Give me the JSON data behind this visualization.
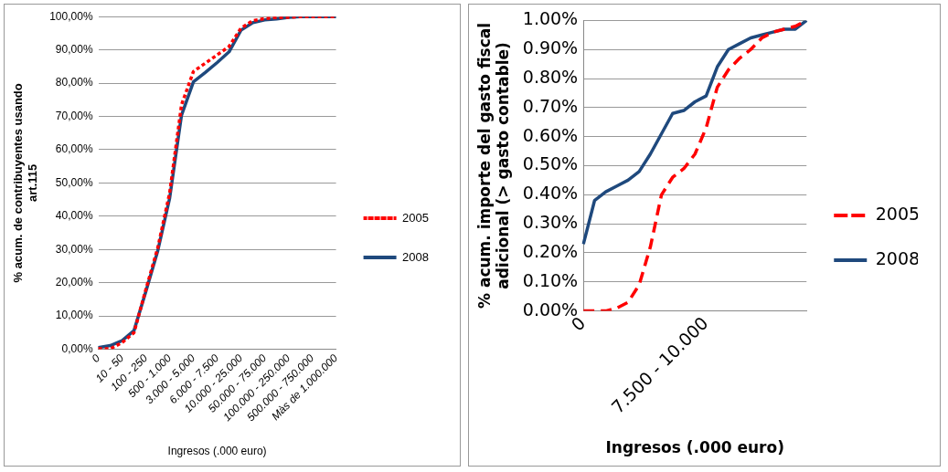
{
  "chart_data": [
    {
      "type": "line",
      "xlabel": "Ingresos (.000 euro)",
      "ylabel": "% acum. de contribuyentes usando art.115",
      "categories": [
        "0",
        null,
        "10 - 50",
        null,
        "100 - 250",
        null,
        "500 - 1.000",
        null,
        "3.000 - 5.000",
        null,
        "6.000 - 7.500",
        null,
        "10.000 - 25.000",
        null,
        "50.000 - 75.000",
        null,
        "100.000 - 250.000",
        null,
        "500.000 - 750.000",
        null,
        "Màs de 1.000.000"
      ],
      "series": [
        {
          "name": "2005",
          "color": "#ff0000",
          "line_style": "dotted",
          "values": [
            0.2,
            0.1,
            2.0,
            5.0,
            18.0,
            30.5,
            47.0,
            73.5,
            83.5,
            86.0,
            88.5,
            91.0,
            96.5,
            98.8,
            99.4,
            99.7,
            99.8,
            100,
            100,
            100,
            100
          ]
        },
        {
          "name": "2008",
          "color": "#1f497d",
          "values": [
            0.5,
            1.1,
            2.6,
            5.6,
            17.4,
            29.6,
            45.4,
            70.4,
            80.4,
            83.2,
            86.2,
            89.4,
            95.9,
            98.2,
            99.0,
            99.3,
            99.8,
            100,
            100,
            100,
            100
          ]
        }
      ],
      "ylim": [
        0,
        100
      ],
      "yticks": [
        {
          "value": 0,
          "label": "0,00%"
        },
        {
          "value": 10,
          "label": "10,00%"
        },
        {
          "value": 20,
          "label": "20,00%"
        },
        {
          "value": 30,
          "label": "30,00%"
        },
        {
          "value": 40,
          "label": "40,00%"
        },
        {
          "value": 50,
          "label": "50,00%"
        },
        {
          "value": 60,
          "label": "60,00%"
        },
        {
          "value": 70,
          "label": "70,00%"
        },
        {
          "value": 80,
          "label": "80,00%"
        },
        {
          "value": 90,
          "label": "90,00%"
        },
        {
          "value": 100,
          "label": "100,00%"
        }
      ],
      "grid": "y",
      "legend": "right",
      "marker": "none"
    },
    {
      "type": "line",
      "xlabel": "Ingresos (.000 euro)",
      "ylabel": "% acum. importe del gasto fiscal adicional (> gasto contable)",
      "categories": [
        "0",
        null,
        null,
        null,
        null,
        null,
        null,
        null,
        null,
        null,
        null,
        "7.500 - 10.000",
        null,
        null,
        null,
        null,
        null,
        null,
        null,
        null,
        null
      ],
      "series": [
        {
          "name": "2005",
          "color": "#ff0000",
          "line_style": "dashed",
          "values": [
            0,
            0,
            0,
            0.01,
            0.03,
            0.09,
            0.22,
            0.4,
            0.46,
            0.49,
            0.54,
            0.63,
            0.77,
            0.83,
            0.87,
            0.9,
            0.94,
            0.96,
            0.97,
            0.98,
            1.0
          ]
        },
        {
          "name": "2008",
          "color": "#1f497d",
          "values": [
            0.23,
            0.38,
            0.41,
            0.43,
            0.45,
            0.48,
            0.54,
            0.61,
            0.68,
            0.69,
            0.72,
            0.74,
            0.84,
            0.9,
            0.92,
            0.94,
            0.95,
            0.96,
            0.97,
            0.97,
            1.0
          ]
        }
      ],
      "ylim": [
        0,
        1
      ],
      "yticks": [
        {
          "value": 0,
          "label": "0.00%"
        },
        {
          "value": 0.1,
          "label": "0.10%"
        },
        {
          "value": 0.2,
          "label": "0.20%"
        },
        {
          "value": 0.3,
          "label": "0.30%"
        },
        {
          "value": 0.4,
          "label": "0.40%"
        },
        {
          "value": 0.5,
          "label": "0.50%"
        },
        {
          "value": 0.6,
          "label": "0.60%"
        },
        {
          "value": 0.7,
          "label": "0.70%"
        },
        {
          "value": 0.8,
          "label": "0.80%"
        },
        {
          "value": 0.9,
          "label": "0.90%"
        },
        {
          "value": 1,
          "label": "1.00%"
        }
      ],
      "grid": "y",
      "legend": "right",
      "marker": "none"
    }
  ]
}
